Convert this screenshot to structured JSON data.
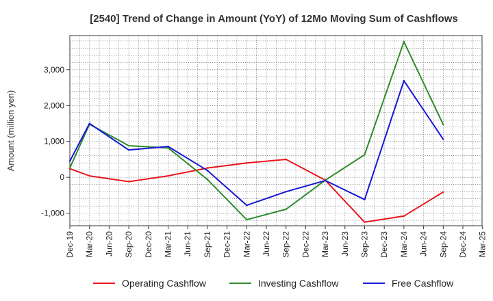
{
  "chart_data": {
    "type": "line",
    "title": "[2540]  Trend of Change in Amount (YoY) of 12Mo Moving Sum of Cashflows",
    "xlabel": "",
    "ylabel": "Amount (million yen)",
    "ylim": [
      -1350,
      3950
    ],
    "yticks": [
      -1000,
      0,
      1000,
      2000,
      3000
    ],
    "ytick_labels": [
      "-1,000",
      "0",
      "1,000",
      "2,000",
      "3,000"
    ],
    "categories": [
      "Dec-19",
      "Mar-20",
      "Jun-20",
      "Sep-20",
      "Dec-20",
      "Mar-21",
      "Jun-21",
      "Sep-21",
      "Dec-21",
      "Mar-22",
      "Jun-22",
      "Sep-22",
      "Dec-22",
      "Mar-23",
      "Jun-23",
      "Sep-23",
      "Dec-23",
      "Mar-24",
      "Jun-24",
      "Sep-24",
      "Dec-24",
      "Mar-25"
    ],
    "grid": true,
    "legend_position": "bottom",
    "series": [
      {
        "name": "Operating Cashflow",
        "color": "#e8171d",
        "x": [
          "Dec-19",
          "Mar-20",
          "Sep-20",
          "Mar-21",
          "Sep-21",
          "Mar-22",
          "Sep-22",
          "Mar-23",
          "Sep-23",
          "Mar-24",
          "Sep-24"
        ],
        "values": [
          240,
          40,
          -120,
          40,
          260,
          400,
          500,
          -80,
          -1250,
          -1080,
          -410
        ]
      },
      {
        "name": "Investing Cashflow",
        "color": "#2e8b2e",
        "x": [
          "Dec-19",
          "Mar-20",
          "Sep-20",
          "Mar-21",
          "Sep-21",
          "Mar-22",
          "Sep-22",
          "Mar-23",
          "Sep-23",
          "Mar-24",
          "Sep-24"
        ],
        "values": [
          260,
          1480,
          880,
          820,
          -60,
          -1180,
          -890,
          -80,
          630,
          3780,
          1470
        ]
      },
      {
        "name": "Free Cashflow",
        "color": "#1717d6",
        "x": [
          "Dec-19",
          "Mar-20",
          "Sep-20",
          "Mar-21",
          "Sep-21",
          "Mar-22",
          "Sep-22",
          "Mar-23",
          "Sep-23",
          "Mar-24",
          "Sep-24"
        ],
        "values": [
          450,
          1500,
          760,
          860,
          190,
          -780,
          -400,
          -90,
          -620,
          2690,
          1060
        ]
      }
    ]
  }
}
